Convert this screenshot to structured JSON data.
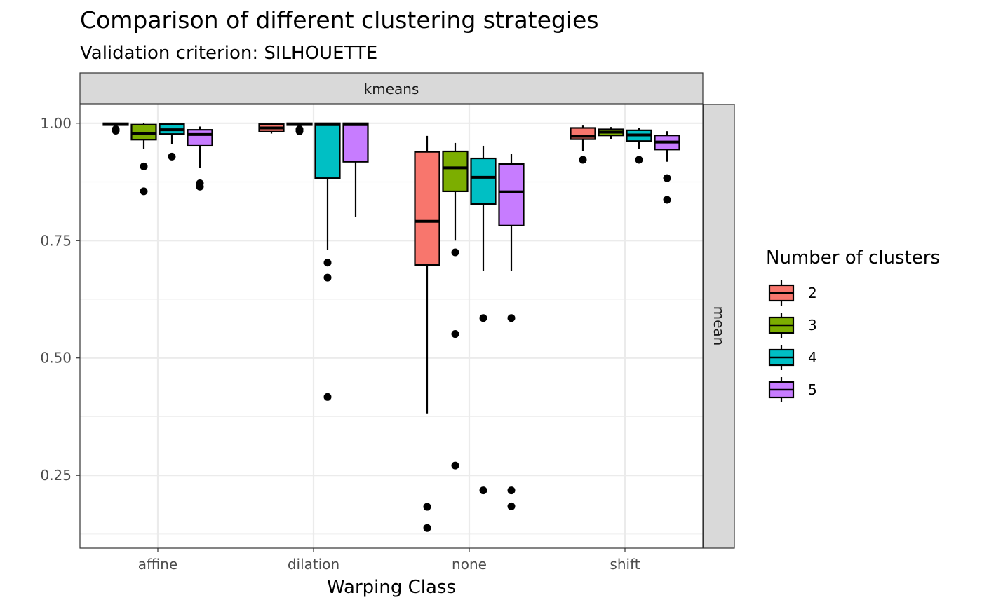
{
  "chart_data": {
    "type": "boxplot",
    "title": "Comparison of different clustering strategies",
    "subtitle": "Validation criterion: SILHOUETTE",
    "xlabel": "Warping Class",
    "ylabel": "",
    "facet_column": "kmeans",
    "facet_row": "mean",
    "categories": [
      "affine",
      "dilation",
      "none",
      "shift"
    ],
    "yticks": [
      1.0,
      0.75,
      0.5,
      0.25
    ],
    "ytick_labels": [
      "1.00",
      "0.75",
      "0.50",
      "0.25"
    ],
    "ylim": [
      0.095,
      1.04
    ],
    "grid": true,
    "legend": {
      "title": "Number of clusters",
      "position": "right"
    },
    "series": [
      {
        "name": "2",
        "color": "#F8766D",
        "boxes": [
          {
            "category": "affine",
            "min": 0.99,
            "q1": 0.996,
            "median": 0.998,
            "q3": 1.0,
            "max": 1.0,
            "outliers": [
              0.987,
              0.984
            ]
          },
          {
            "category": "dilation",
            "min": 0.978,
            "q1": 0.982,
            "median": 0.99,
            "q3": 0.998,
            "max": 1.0,
            "outliers": []
          },
          {
            "category": "none",
            "min": 0.382,
            "q1": 0.698,
            "median": 0.791,
            "q3": 0.939,
            "max": 0.973,
            "outliers": [
              0.183,
              0.138
            ]
          },
          {
            "category": "shift",
            "min": 0.94,
            "q1": 0.966,
            "median": 0.972,
            "q3": 0.99,
            "max": 0.995,
            "outliers": [
              0.922
            ]
          }
        ]
      },
      {
        "name": "3",
        "color": "#7CAE00",
        "boxes": [
          {
            "category": "affine",
            "min": 0.945,
            "q1": 0.965,
            "median": 0.978,
            "q3": 0.997,
            "max": 1.0,
            "outliers": [
              0.908,
              0.855
            ]
          },
          {
            "category": "dilation",
            "min": 0.99,
            "q1": 0.996,
            "median": 0.998,
            "q3": 1.0,
            "max": 1.0,
            "outliers": [
              0.987,
              0.983
            ]
          },
          {
            "category": "none",
            "min": 0.75,
            "q1": 0.855,
            "median": 0.905,
            "q3": 0.94,
            "max": 0.958,
            "outliers": [
              0.725,
              0.551,
              0.271
            ]
          },
          {
            "category": "shift",
            "min": 0.966,
            "q1": 0.974,
            "median": 0.981,
            "q3": 0.987,
            "max": 0.992,
            "outliers": []
          }
        ]
      },
      {
        "name": "4",
        "color": "#00BFC4",
        "boxes": [
          {
            "category": "affine",
            "min": 0.955,
            "q1": 0.977,
            "median": 0.986,
            "q3": 0.998,
            "max": 1.0,
            "outliers": [
              0.929
            ]
          },
          {
            "category": "dilation",
            "min": 0.73,
            "q1": 0.883,
            "median": 0.997,
            "q3": 1.0,
            "max": 1.0,
            "outliers": [
              0.703,
              0.671,
              0.417
            ]
          },
          {
            "category": "none",
            "min": 0.685,
            "q1": 0.828,
            "median": 0.885,
            "q3": 0.925,
            "max": 0.952,
            "outliers": [
              0.585,
              0.218
            ]
          },
          {
            "category": "shift",
            "min": 0.945,
            "q1": 0.962,
            "median": 0.975,
            "q3": 0.985,
            "max": 0.99,
            "outliers": [
              0.922
            ]
          }
        ]
      },
      {
        "name": "5",
        "color": "#C77CFF",
        "boxes": [
          {
            "category": "affine",
            "min": 0.905,
            "q1": 0.952,
            "median": 0.976,
            "q3": 0.986,
            "max": 0.993,
            "outliers": [
              0.872,
              0.865
            ]
          },
          {
            "category": "dilation",
            "min": 0.8,
            "q1": 0.918,
            "median": 0.997,
            "q3": 1.0,
            "max": 1.0,
            "outliers": []
          },
          {
            "category": "none",
            "min": 0.685,
            "q1": 0.782,
            "median": 0.854,
            "q3": 0.913,
            "max": 0.934,
            "outliers": [
              0.585,
              0.218,
              0.184
            ]
          },
          {
            "category": "shift",
            "min": 0.918,
            "q1": 0.944,
            "median": 0.96,
            "q3": 0.974,
            "max": 0.983,
            "outliers": [
              0.883,
              0.837
            ]
          }
        ]
      }
    ]
  }
}
